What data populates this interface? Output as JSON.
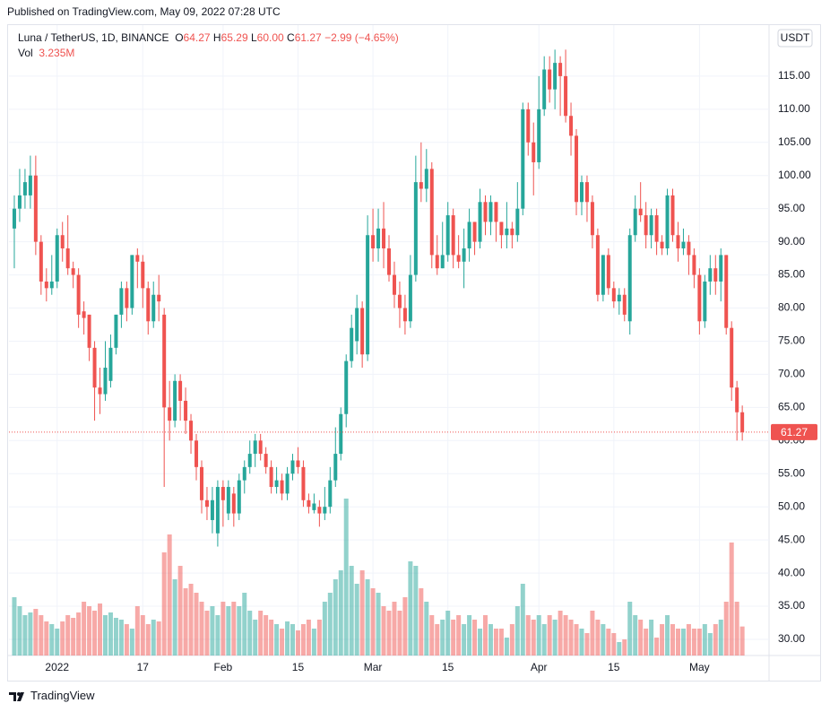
{
  "page": {
    "published": "Published on TradingView.com, May 09, 2022 07:28 UTC",
    "brand": "TradingView",
    "currency": "USDT"
  },
  "chart_data": {
    "type": "candlestick",
    "title": "Luna / TetherUS, 1D, BINANCE",
    "ohlc_labels": [
      "O",
      "H",
      "L",
      "C"
    ],
    "ohlc_values": [
      "64.27",
      "65.29",
      "60.00",
      "61.27"
    ],
    "change": "−2.99 (−4.65%)",
    "volume_label": "Vol",
    "volume_value": "3.235M",
    "up_color": "#26a69a",
    "down_color": "#ef5350",
    "grid": true,
    "xlim": [
      "2021-12-23",
      "2022-05-14"
    ],
    "xticks": [
      {
        "value": "2022-01-01",
        "label": "2022"
      },
      {
        "value": "2022-01-17",
        "label": "17"
      },
      {
        "value": "2022-02-01",
        "label": "Feb"
      },
      {
        "value": "2022-02-15",
        "label": "15"
      },
      {
        "value": "2022-03-01",
        "label": "Mar"
      },
      {
        "value": "2022-03-15",
        "label": "15"
      },
      {
        "value": "2022-04-01",
        "label": "Apr"
      },
      {
        "value": "2022-04-15",
        "label": "15"
      },
      {
        "value": "2022-05-01",
        "label": "May"
      }
    ],
    "ylim": [
      27.56,
      122.7
    ],
    "yticks": [
      {
        "value": 30,
        "label": "30.00"
      },
      {
        "value": 35,
        "label": "35.00"
      },
      {
        "value": 40,
        "label": "40.00"
      },
      {
        "value": 45,
        "label": "45.00"
      },
      {
        "value": 50,
        "label": "50.00"
      },
      {
        "value": 55,
        "label": "55.00"
      },
      {
        "value": 60,
        "label": "60.00"
      },
      {
        "value": 65,
        "label": "65.00"
      },
      {
        "value": 70,
        "label": "70.00"
      },
      {
        "value": 75,
        "label": "75.00"
      },
      {
        "value": 80,
        "label": "80.00"
      },
      {
        "value": 85,
        "label": "85.00"
      },
      {
        "value": 90,
        "label": "90.00"
      },
      {
        "value": 95,
        "label": "95.00"
      },
      {
        "value": 100,
        "label": "100.00"
      },
      {
        "value": 105,
        "label": "105.00"
      },
      {
        "value": 110,
        "label": "110.00"
      },
      {
        "value": 115,
        "label": "115.00"
      }
    ],
    "x": [
      "2021-12-24",
      "2021-12-25",
      "2021-12-26",
      "2021-12-27",
      "2021-12-28",
      "2021-12-29",
      "2021-12-30",
      "2021-12-31",
      "2022-01-01",
      "2022-01-02",
      "2022-01-03",
      "2022-01-04",
      "2022-01-05",
      "2022-01-06",
      "2022-01-07",
      "2022-01-08",
      "2022-01-09",
      "2022-01-10",
      "2022-01-11",
      "2022-01-12",
      "2022-01-13",
      "2022-01-14",
      "2022-01-15",
      "2022-01-16",
      "2022-01-17",
      "2022-01-18",
      "2022-01-19",
      "2022-01-20",
      "2022-01-21",
      "2022-01-22",
      "2022-01-23",
      "2022-01-24",
      "2022-01-25",
      "2022-01-26",
      "2022-01-27",
      "2022-01-28",
      "2022-01-29",
      "2022-01-30",
      "2022-01-31",
      "2022-02-01",
      "2022-02-02",
      "2022-02-03",
      "2022-02-04",
      "2022-02-05",
      "2022-02-06",
      "2022-02-07",
      "2022-02-08",
      "2022-02-09",
      "2022-02-10",
      "2022-02-11",
      "2022-02-12",
      "2022-02-13",
      "2022-02-14",
      "2022-02-15",
      "2022-02-16",
      "2022-02-17",
      "2022-02-18",
      "2022-02-19",
      "2022-02-20",
      "2022-02-21",
      "2022-02-22",
      "2022-02-23",
      "2022-02-24",
      "2022-02-25",
      "2022-02-26",
      "2022-02-27",
      "2022-02-28",
      "2022-03-01",
      "2022-03-02",
      "2022-03-03",
      "2022-03-04",
      "2022-03-05",
      "2022-03-06",
      "2022-03-07",
      "2022-03-08",
      "2022-03-09",
      "2022-03-10",
      "2022-03-11",
      "2022-03-12",
      "2022-03-13",
      "2022-03-14",
      "2022-03-15",
      "2022-03-16",
      "2022-03-17",
      "2022-03-18",
      "2022-03-19",
      "2022-03-20",
      "2022-03-21",
      "2022-03-22",
      "2022-03-23",
      "2022-03-24",
      "2022-03-25",
      "2022-03-26",
      "2022-03-27",
      "2022-03-28",
      "2022-03-29",
      "2022-03-30",
      "2022-03-31",
      "2022-04-01",
      "2022-04-02",
      "2022-04-03",
      "2022-04-04",
      "2022-04-05",
      "2022-04-06",
      "2022-04-07",
      "2022-04-08",
      "2022-04-09",
      "2022-04-10",
      "2022-04-11",
      "2022-04-12",
      "2022-04-13",
      "2022-04-14",
      "2022-04-15",
      "2022-04-16",
      "2022-04-17",
      "2022-04-18",
      "2022-04-19",
      "2022-04-20",
      "2022-04-21",
      "2022-04-22",
      "2022-04-23",
      "2022-04-24",
      "2022-04-25",
      "2022-04-26",
      "2022-04-27",
      "2022-04-28",
      "2022-04-29",
      "2022-04-30",
      "2022-05-01",
      "2022-05-02",
      "2022-05-03",
      "2022-05-04",
      "2022-05-05",
      "2022-05-06",
      "2022-05-07",
      "2022-05-08",
      "2022-05-09"
    ],
    "open": [
      92,
      95,
      97,
      97,
      100,
      90,
      84,
      83,
      84,
      91,
      89,
      86,
      85,
      79.5,
      79,
      74,
      68,
      67,
      69,
      74,
      79,
      83,
      80,
      88,
      87,
      83,
      78,
      82,
      79,
      65,
      63,
      69,
      66,
      63,
      60,
      56,
      51,
      48,
      46,
      53,
      49,
      52,
      49,
      54,
      56,
      58,
      60,
      58,
      56,
      53,
      54,
      52,
      55,
      57,
      56,
      51,
      49.5,
      50,
      49,
      50,
      54,
      58,
      64,
      72,
      75,
      80,
      73,
      91,
      89,
      92,
      89,
      85,
      82,
      80,
      78,
      85,
      99,
      98,
      101,
      88,
      86,
      88,
      94,
      88,
      87,
      89,
      93,
      90,
      96,
      93,
      96,
      93,
      91,
      92,
      91,
      95,
      110,
      105,
      102,
      110,
      116,
      113,
      117,
      115,
      109,
      106,
      96,
      99,
      96,
      91,
      82,
      88,
      83,
      81,
      82,
      78,
      91,
      95,
      94,
      91,
      94,
      90,
      89,
      97,
      91,
      89,
      90,
      88,
      85,
      78,
      84,
      86,
      84,
      88,
      77,
      68,
      64.27
    ],
    "high": [
      97,
      101,
      101,
      103,
      103,
      91,
      86,
      88,
      92,
      93,
      94,
      87,
      86,
      81,
      79,
      75,
      71,
      75,
      76,
      79,
      84,
      84,
      88,
      89,
      88,
      84,
      84,
      85,
      80,
      69,
      70,
      70,
      68,
      64,
      61,
      57,
      53,
      53,
      54,
      54,
      54,
      53,
      55,
      57,
      60,
      61,
      61,
      59,
      57,
      56,
      55,
      56,
      58,
      59,
      57,
      52,
      52,
      51,
      53,
      56,
      62,
      65,
      73,
      79,
      82,
      81,
      94,
      95,
      95,
      96,
      91,
      87,
      84,
      82,
      88,
      103,
      105,
      104,
      102,
      91,
      93,
      96,
      95,
      91,
      92,
      95,
      93,
      98,
      97,
      97,
      96,
      93,
      96,
      93,
      99,
      111,
      111,
      108,
      115,
      118,
      118,
      119,
      118,
      119,
      111,
      107,
      100,
      100,
      97,
      92,
      88,
      89,
      84,
      83,
      83,
      92,
      97,
      99,
      96,
      95,
      95,
      91,
      98,
      98,
      93,
      92,
      91,
      89,
      86,
      85,
      88,
      88,
      89,
      88,
      78,
      69,
      65.29
    ],
    "low": [
      86,
      93,
      95,
      95,
      88,
      82,
      81,
      82,
      83,
      87,
      85,
      83,
      77,
      76,
      72,
      63,
      64,
      66,
      68,
      73,
      77,
      78,
      79,
      83,
      80,
      76,
      77,
      78,
      53,
      60,
      62,
      63,
      61,
      58,
      54,
      49,
      48,
      46,
      44,
      47,
      48,
      47,
      48,
      52,
      55,
      56,
      57,
      55,
      52,
      52,
      51,
      51,
      54,
      55,
      50,
      49,
      49,
      47,
      48,
      49,
      53,
      57,
      62,
      71,
      73,
      71,
      72,
      87,
      87,
      86,
      84,
      80,
      77,
      76,
      77,
      84,
      96,
      96,
      86,
      85,
      86,
      87,
      86,
      86,
      83,
      87,
      88,
      89,
      91,
      91,
      90,
      89,
      89,
      89,
      90,
      94,
      103,
      97,
      101,
      109,
      111,
      110,
      109,
      108,
      103,
      94,
      94,
      93,
      89,
      81,
      81,
      82,
      80,
      79,
      78,
      76,
      90,
      93,
      89,
      89,
      88,
      88,
      88,
      90,
      87,
      88,
      85,
      83,
      76,
      77,
      82,
      82,
      81,
      76,
      66,
      60,
      60
    ],
    "close": [
      95,
      97,
      99,
      100,
      90,
      84,
      83,
      84,
      91,
      89,
      86,
      85,
      79,
      78.5,
      74,
      68,
      67,
      71,
      74,
      79,
      83,
      80,
      88,
      87,
      83,
      78,
      82,
      81,
      65,
      63,
      69,
      66,
      63,
      60,
      56,
      51,
      50,
      51,
      53,
      51,
      53,
      49,
      54,
      56,
      58,
      60,
      58,
      56,
      53,
      54,
      52,
      55,
      57,
      56,
      51,
      50,
      50.5,
      49,
      50,
      54,
      58,
      64,
      72,
      77,
      80,
      73,
      91,
      89,
      92,
      89,
      85,
      82,
      80,
      78,
      85,
      99,
      98,
      101,
      88,
      86,
      88,
      94,
      88,
      87,
      89,
      93,
      90,
      96,
      93,
      96,
      93,
      91,
      92,
      91,
      95,
      110,
      105,
      102,
      110,
      116,
      113,
      117,
      115,
      109,
      106,
      96,
      99,
      96,
      91,
      82,
      88,
      83,
      81,
      82,
      79,
      91,
      95,
      94,
      91,
      94,
      90,
      89,
      97,
      91,
      89,
      90,
      88,
      85,
      78,
      84,
      86,
      84,
      88,
      77,
      68,
      64.27,
      61.27
    ],
    "volume": [
      6.5,
      5.5,
      4.5,
      4.8,
      5.2,
      4.5,
      3.8,
      3.5,
      3.0,
      3.8,
      4.5,
      4.2,
      4.8,
      6.0,
      5.5,
      5.0,
      5.8,
      4.5,
      4.8,
      4.2,
      4.0,
      3.5,
      3.0,
      5.5,
      4.5,
      3.5,
      4.0,
      3.8,
      11.5,
      13.5,
      8.5,
      10.0,
      7.5,
      8.0,
      7.0,
      6.0,
      5.0,
      5.5,
      4.5,
      6.0,
      5.5,
      6.0,
      5.5,
      7.0,
      5.0,
      4.0,
      5.0,
      4.5,
      4.0,
      3.5,
      3.0,
      3.8,
      3.5,
      2.8,
      3.5,
      4.0,
      3.0,
      4.0,
      6.0,
      7.0,
      8.5,
      9.5,
      17.5,
      10.0,
      8.0,
      9.5,
      8.5,
      7.5,
      7.0,
      5.5,
      5.0,
      6.0,
      5.0,
      6.5,
      10.5,
      10.0,
      7.5,
      6.0,
      4.5,
      3.5,
      4.0,
      5.0,
      4.0,
      4.5,
      3.5,
      4.5,
      4.0,
      3.0,
      4.5,
      3.5,
      3.0,
      3.0,
      2.0,
      3.5,
      5.5,
      8.0,
      4.5,
      4.0,
      4.5,
      3.5,
      4.5,
      4.0,
      5.0,
      4.5,
      4.0,
      3.5,
      3.0,
      2.5,
      5.0,
      4.0,
      3.5,
      3.0,
      2.5,
      1.5,
      1.8,
      6.0,
      4.5,
      4.0,
      3.0,
      4.0,
      2.0,
      3.5,
      4.5,
      3.5,
      3.0,
      3.0,
      3.5,
      3.0,
      3.0,
      3.5,
      2.5,
      3.5,
      4.0,
      6.0,
      12.6,
      6.0,
      3.235
    ]
  }
}
